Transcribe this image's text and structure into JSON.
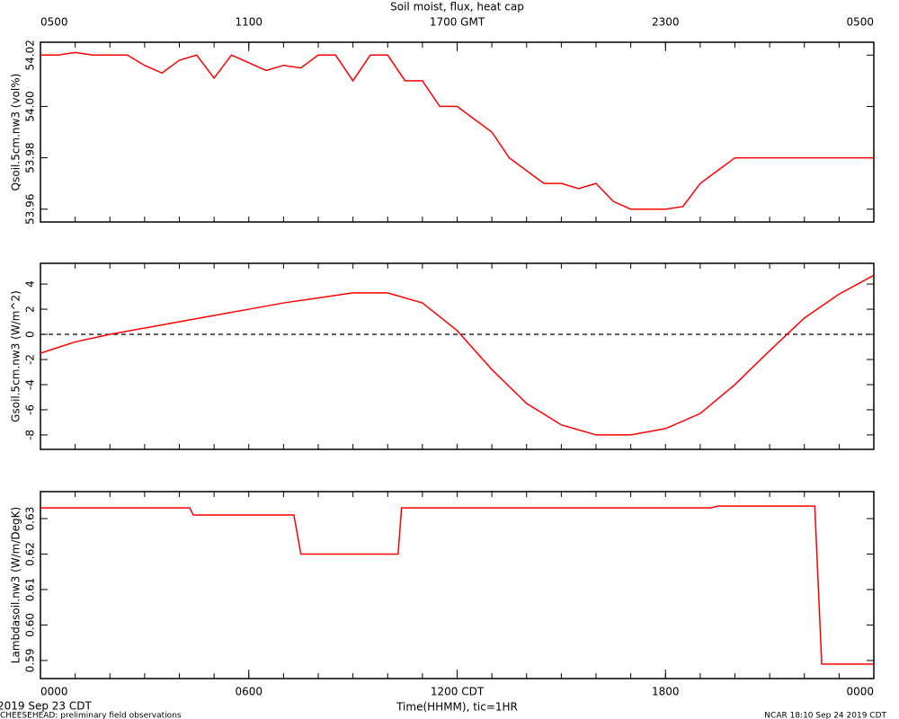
{
  "chart_data": [
    {
      "type": "line",
      "title": "Soil moist, flux, heat cap",
      "ylabel": "Qsoil.5cm.nw3 (vol%)",
      "x": [
        0,
        0.5,
        1,
        1.5,
        2,
        2.5,
        3,
        3.5,
        4,
        4.5,
        5,
        5.5,
        6,
        6.5,
        7,
        7.5,
        8,
        8.5,
        9,
        9.5,
        10,
        10.5,
        11,
        11.5,
        12,
        12.5,
        13,
        13.5,
        14,
        14.5,
        15,
        15.5,
        16,
        16.5,
        17,
        17.5,
        18,
        18.5,
        19,
        19.5,
        20,
        20.5,
        21,
        21.5,
        22,
        22.5,
        23,
        23.5,
        24
      ],
      "series": [
        {
          "name": "Qsoil.5cm.nw3",
          "color": "#ff0000",
          "values": [
            54.02,
            54.02,
            54.021,
            54.02,
            54.02,
            54.02,
            54.016,
            54.013,
            54.018,
            54.02,
            54.011,
            54.02,
            54.017,
            54.014,
            54.016,
            54.015,
            54.02,
            54.02,
            54.01,
            54.02,
            54.02,
            54.01,
            54.01,
            54.0,
            54.0,
            53.995,
            53.99,
            53.98,
            53.975,
            53.97,
            53.97,
            53.968,
            53.97,
            53.963,
            53.96,
            53.96,
            53.96,
            53.961,
            53.97,
            53.975,
            53.98,
            53.98,
            53.98,
            53.98,
            53.98,
            53.98,
            53.98,
            53.98,
            53.98
          ]
        }
      ],
      "xlim": [
        0,
        24
      ],
      "x2ticks": [
        {
          "value": 0,
          "label": "0500"
        },
        {
          "value": 6,
          "label": "1100"
        },
        {
          "value": 12,
          "label": "1700 GMT"
        },
        {
          "value": 18,
          "label": "2300"
        },
        {
          "value": 24,
          "label": "0500"
        }
      ],
      "xminor": [
        0,
        1,
        2,
        3,
        4,
        5,
        6,
        7,
        8,
        9,
        10,
        11,
        12,
        13,
        14,
        15,
        16,
        17,
        18,
        19,
        20,
        21,
        22,
        23,
        24
      ],
      "ylim": [
        53.955,
        54.025
      ],
      "yticks": [
        53.96,
        53.98,
        {
          "value": 54.0,
          "label": "54.00"
        },
        54.02
      ]
    },
    {
      "type": "line",
      "ylabel": "Gsoil.5cm.nw3 (W/m^2)",
      "x": [
        0,
        1,
        2,
        3,
        4,
        5,
        6,
        7,
        8,
        9,
        10,
        11,
        12,
        13,
        14,
        15,
        16,
        17,
        18,
        19,
        20,
        21,
        22,
        23,
        24
      ],
      "series": [
        {
          "name": "Gsoil.5cm.nw3",
          "color": "#ff0000",
          "values": [
            -1.5,
            -0.6,
            0,
            0.5,
            1.0,
            1.5,
            2.0,
            2.5,
            2.9,
            3.3,
            3.3,
            2.5,
            0.3,
            -2.8,
            -5.5,
            -7.2,
            -8.0,
            -8.0,
            -7.5,
            -6.3,
            -4.0,
            -1.3,
            1.3,
            3.2,
            4.7
          ]
        }
      ],
      "xlim": [
        0,
        24
      ],
      "xminor": [
        0,
        1,
        2,
        3,
        4,
        5,
        6,
        7,
        8,
        9,
        10,
        11,
        12,
        13,
        14,
        15,
        16,
        17,
        18,
        19,
        20,
        21,
        22,
        23,
        24
      ],
      "ylim": [
        -9.15,
        5.65
      ],
      "yticks": [
        -8,
        -6,
        -4,
        -2,
        0,
        2,
        4
      ],
      "hline": 0
    },
    {
      "type": "line",
      "ylabel": "Lambdasoil.nw3 (W/m/DegK)",
      "xlabel": "Time(HHMM), tic=1HR",
      "x": [
        0,
        4.3,
        4.4,
        7.3,
        7.5,
        10.3,
        10.4,
        19.3,
        19.5,
        22.3,
        22.5,
        24
      ],
      "series": [
        {
          "name": "Lambdasoil.nw3",
          "color": "#ff0000",
          "values": [
            0.633,
            0.633,
            0.631,
            0.631,
            0.62,
            0.62,
            0.633,
            0.633,
            0.6335,
            0.6335,
            0.589,
            0.589
          ]
        }
      ],
      "xlim": [
        0,
        24
      ],
      "xminor": [
        0,
        1,
        2,
        3,
        4,
        5,
        6,
        7,
        8,
        9,
        10,
        11,
        12,
        13,
        14,
        15,
        16,
        17,
        18,
        19,
        20,
        21,
        22,
        23,
        24
      ],
      "xticks": [
        {
          "value": 0,
          "label": "0000"
        },
        {
          "value": 6,
          "label": "0600"
        },
        {
          "value": 12,
          "label": "1200 CDT"
        },
        {
          "value": 18,
          "label": "1800"
        },
        {
          "value": 24,
          "label": "0000"
        }
      ],
      "ylim": [
        0.5849,
        0.6376
      ],
      "yticks": [
        0.59,
        {
          "value": 0.6,
          "label": "0.60"
        },
        0.61,
        0.62,
        0.63
      ],
      "footer_left": "2019 Sep 23 CDT",
      "footer_note": "CHEESEHEAD: preliminary field observations",
      "footer_right": "NCAR 18:10 Sep 24 2019 CDT"
    }
  ]
}
